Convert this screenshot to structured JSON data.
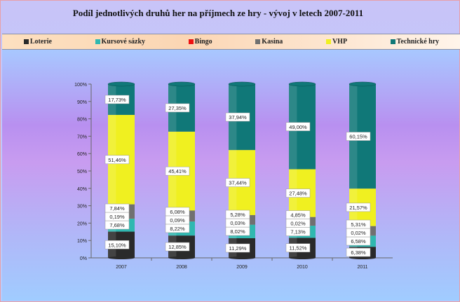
{
  "chart_data": {
    "type": "bar",
    "stacked": true,
    "percent": true,
    "title": "Podíl jednotlivých druhů her na příjmech ze hry - vývoj v letech 2007-2011",
    "categories": [
      "2007",
      "2008",
      "2009",
      "2010",
      "2011"
    ],
    "yticks": [
      "0%",
      "10%",
      "20%",
      "30%",
      "40%",
      "50%",
      "60%",
      "70%",
      "80%",
      "90%",
      "100%"
    ],
    "ylim": [
      0,
      100
    ],
    "legend_position": "top",
    "series": [
      {
        "name": "Loterie",
        "color": "#2a2a2a",
        "values": [
          15.1,
          12.85,
          11.29,
          11.52,
          6.38
        ],
        "labels": [
          "15,10%",
          "12,85%",
          "11,29%",
          "11,52%",
          "6,38%"
        ]
      },
      {
        "name": "Kursové sázky",
        "color": "#30b8b0",
        "values": [
          7.68,
          8.22,
          8.02,
          7.13,
          6.58
        ],
        "labels": [
          "7,68%",
          "8,22%",
          "8,02%",
          "7,13%",
          "6,58%"
        ]
      },
      {
        "name": "Bingo",
        "color": "#ee1111",
        "values": [
          0.19,
          0.09,
          0.03,
          0.02,
          0.02
        ],
        "labels": [
          "0,19%",
          "0,09%",
          "0,03%",
          "0,02%",
          "0,02%"
        ]
      },
      {
        "name": "Kasina",
        "color": "#707070",
        "values": [
          7.84,
          6.08,
          5.28,
          4.85,
          5.31
        ],
        "labels": [
          "7,84%",
          "6,08%",
          "5,28%",
          "4,85%",
          "5,31%"
        ]
      },
      {
        "name": "VHP",
        "color": "#f0f020",
        "values": [
          51.46,
          45.41,
          37.44,
          27.48,
          21.57
        ],
        "labels": [
          "51,46%",
          "45,41%",
          "37,44%",
          "27,48%",
          "21,57%"
        ]
      },
      {
        "name": "Technické hry",
        "color": "#107878",
        "values": [
          17.73,
          27.35,
          37.94,
          49.0,
          60.15
        ],
        "labels": [
          "17,73%",
          "27,35%",
          "37,94%",
          "49,00%",
          "60,15%"
        ]
      }
    ]
  }
}
